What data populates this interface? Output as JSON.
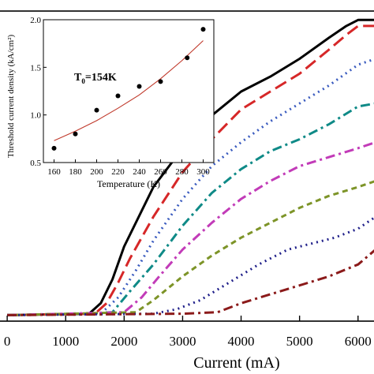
{
  "chart_data": [
    {
      "type": "line",
      "title": "",
      "xlabel": "Current (mA)",
      "ylabel": "",
      "xlim": [
        -150,
        6300
      ],
      "ylim": [
        -0.02,
        1.02
      ],
      "xticks": [
        0,
        1000,
        2000,
        3000,
        4000,
        5000,
        6000
      ],
      "xtick_labels": [
        "0",
        "1000",
        "2000",
        "3000",
        "4000",
        "5000",
        "6000"
      ],
      "grid": false,
      "legend": "none",
      "series": [
        {
          "color": "#000000",
          "dash": "solid",
          "x": [
            0,
            1400,
            1600,
            1800,
            2000,
            2500,
            3000,
            3500,
            4000,
            4500,
            5000,
            5500,
            5800,
            6000,
            6300
          ],
          "y": [
            0,
            0.005,
            0.04,
            0.12,
            0.23,
            0.43,
            0.56,
            0.67,
            0.75,
            0.8,
            0.86,
            0.93,
            0.97,
            0.99,
            0.99
          ]
        },
        {
          "color": "#d62728",
          "dash": "long-dash",
          "x": [
            0,
            1500,
            1700,
            1900,
            2100,
            2500,
            3000,
            3500,
            4000,
            4500,
            5000,
            5500,
            5800,
            6000,
            6300
          ],
          "y": [
            0,
            0.005,
            0.04,
            0.11,
            0.19,
            0.33,
            0.48,
            0.59,
            0.69,
            0.75,
            0.81,
            0.89,
            0.94,
            0.97,
            0.97
          ]
        },
        {
          "color": "#3a5bbf",
          "dash": "dotted",
          "x": [
            0,
            1600,
            1900,
            2200,
            2500,
            3000,
            3500,
            4000,
            4500,
            5000,
            5500,
            6000,
            6300
          ],
          "y": [
            0,
            0.005,
            0.06,
            0.15,
            0.25,
            0.39,
            0.5,
            0.58,
            0.65,
            0.71,
            0.77,
            0.84,
            0.86
          ]
        },
        {
          "color": "#0f8a87",
          "dash": "dash-dot",
          "x": [
            0,
            1200,
            1800,
            2100,
            2500,
            3000,
            3500,
            4000,
            4500,
            5000,
            5500,
            6000,
            6300
          ],
          "y": [
            0,
            0.004,
            0.01,
            0.08,
            0.17,
            0.3,
            0.41,
            0.49,
            0.55,
            0.59,
            0.64,
            0.7,
            0.71
          ]
        },
        {
          "color": "#c23bb8",
          "dash": "dash-dot",
          "x": [
            0,
            2000,
            2300,
            2600,
            3000,
            3500,
            4000,
            4500,
            5000,
            5500,
            6000,
            6300
          ],
          "y": [
            0,
            0.01,
            0.06,
            0.13,
            0.22,
            0.31,
            0.39,
            0.45,
            0.5,
            0.53,
            0.56,
            0.58
          ]
        },
        {
          "color": "#7d9428",
          "dash": "dashed",
          "x": [
            0,
            2200,
            2500,
            3000,
            3500,
            4000,
            4500,
            5000,
            5500,
            6000,
            6300
          ],
          "y": [
            0,
            0.01,
            0.05,
            0.13,
            0.2,
            0.26,
            0.31,
            0.36,
            0.4,
            0.43,
            0.45
          ]
        },
        {
          "color": "#20208a",
          "dash": "dotted",
          "x": [
            0,
            2500,
            2900,
            3300,
            3800,
            4300,
            4800,
            5200,
            5600,
            6000,
            6300
          ],
          "y": [
            0,
            0.005,
            0.02,
            0.05,
            0.11,
            0.17,
            0.22,
            0.24,
            0.26,
            0.29,
            0.33
          ]
        },
        {
          "color": "#8b1a1a",
          "dash": "dash-dot",
          "x": [
            0,
            3000,
            3600,
            4000,
            4500,
            5000,
            5500,
            6000,
            6300
          ],
          "y": [
            0,
            0.005,
            0.01,
            0.04,
            0.07,
            0.1,
            0.13,
            0.17,
            0.22
          ]
        }
      ]
    },
    {
      "type": "scatter",
      "title": "",
      "xlabel": "Temperature (K)",
      "ylabel": "Threshold current density  (kA/cm²)",
      "annotation": "T0=154K",
      "annotation_main": "T",
      "annotation_sub": "0",
      "annotation_rest": "=154K",
      "xlim": [
        150,
        310
      ],
      "ylim": [
        0.5,
        2.0
      ],
      "xticks": [
        160,
        180,
        200,
        220,
        240,
        260,
        280,
        300
      ],
      "xtick_labels": [
        "160",
        "180",
        "200",
        "220",
        "240",
        "260",
        "280",
        "300"
      ],
      "yticks": [
        0.5,
        1.0,
        1.5,
        2.0
      ],
      "ytick_labels": [
        "0.5",
        "1.0",
        "1.5",
        "2.0"
      ],
      "grid": false,
      "legend": "none",
      "points": {
        "x": [
          160,
          180,
          200,
          220,
          240,
          260,
          285,
          300
        ],
        "y": [
          0.65,
          0.8,
          1.05,
          1.2,
          1.3,
          1.35,
          1.6,
          1.9
        ]
      },
      "fit": {
        "color": "#c0392b",
        "x": [
          160,
          180,
          200,
          220,
          240,
          260,
          280,
          300
        ],
        "y": [
          0.73,
          0.83,
          0.94,
          1.07,
          1.21,
          1.38,
          1.57,
          1.78
        ]
      }
    }
  ]
}
